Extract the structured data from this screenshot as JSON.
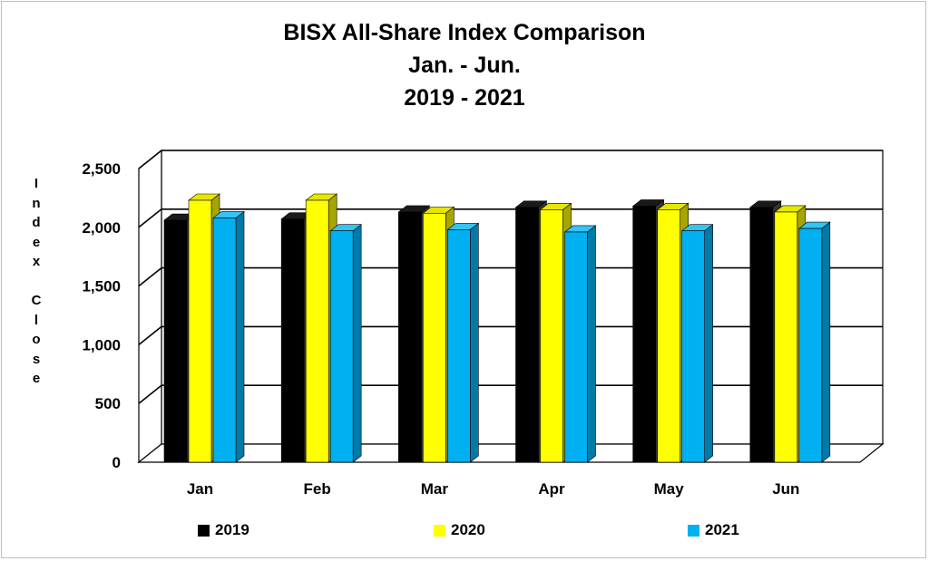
{
  "chart_data": {
    "type": "bar",
    "title_lines": [
      "BISX All-Share Index Comparison",
      "Jan. - Jun.",
      "2019 - 2021"
    ],
    "ylabel_words": [
      "Index",
      "Close"
    ],
    "categories": [
      "Jan",
      "Feb",
      "Mar",
      "Apr",
      "May",
      "Jun"
    ],
    "series": [
      {
        "name": "2019",
        "color": "#000000",
        "values": [
          2060,
          2070,
          2130,
          2170,
          2180,
          2170
        ]
      },
      {
        "name": "2020",
        "color": "#ffff00",
        "values": [
          2230,
          2230,
          2120,
          2150,
          2150,
          2130
        ]
      },
      {
        "name": "2021",
        "color": "#00b0f0",
        "values": [
          2080,
          1970,
          1980,
          1960,
          1970,
          1990
        ]
      }
    ],
    "ylim": [
      0,
      2500
    ],
    "yticks": [
      0,
      500,
      1000,
      1500,
      2000,
      2500
    ],
    "ytick_labels": [
      "0",
      "500",
      "1,000",
      "1,500",
      "2,000",
      "2,500"
    ],
    "grid": true,
    "legend_position": "bottom"
  }
}
